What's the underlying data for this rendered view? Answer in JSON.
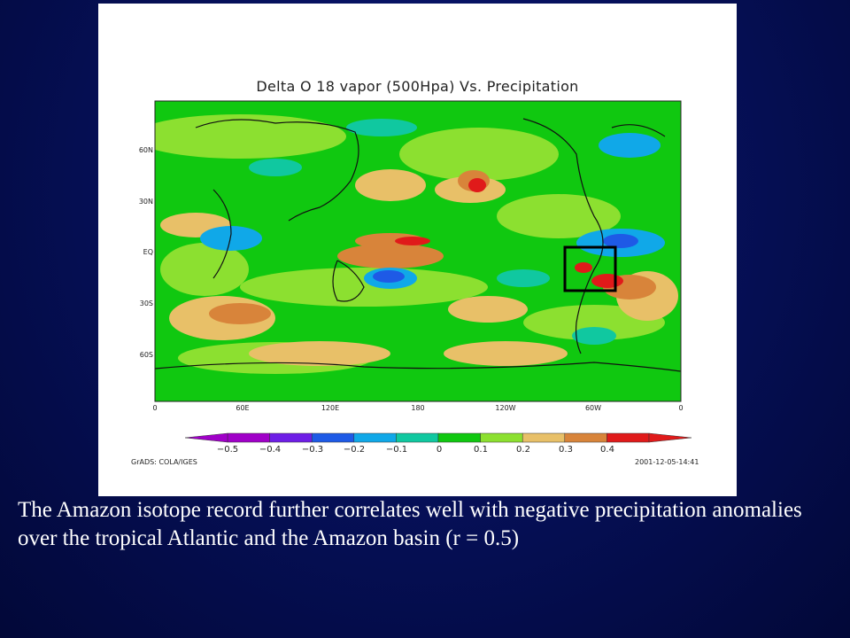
{
  "figure": {
    "title": "Delta O 18 vapor (500Hpa) Vs. Precipitation",
    "lat_labels": [
      "60N",
      "30N",
      "EQ",
      "30S",
      "60S"
    ],
    "lon_labels": [
      "0",
      "60E",
      "120E",
      "180",
      "120W",
      "60W",
      "0"
    ],
    "colorbar": {
      "labels": [
        "−0.5",
        "−0.4",
        "−0.3",
        "−0.2",
        "−0.1",
        "0",
        "0.1",
        "0.2",
        "0.3",
        "0.4"
      ],
      "colors": [
        "#a000c8",
        "#6e1ee6",
        "#1e5ae6",
        "#10a8e8",
        "#10c8a0",
        "#10c810",
        "#8ce030",
        "#e8c068",
        "#d8843a",
        "#e01a1a"
      ]
    },
    "credit_left": "GrADS: COLA/IGES",
    "credit_right": "2001-12-05-14:41"
  },
  "caption": {
    "text": " The Amazon isotope record further correlates well with negative precipitation anomalies over the tropical Atlantic and the Amazon basin (r = 0.5)"
  }
}
